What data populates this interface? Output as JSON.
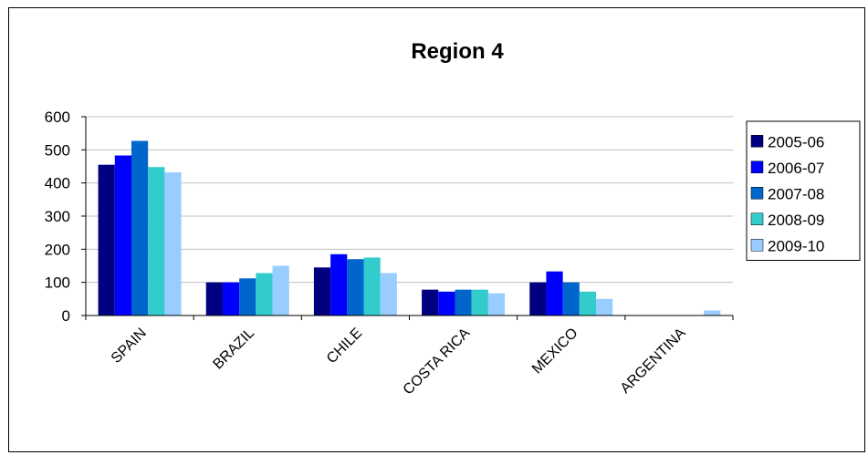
{
  "chart_data": {
    "type": "bar",
    "title": "Region 4",
    "xlabel": "",
    "ylabel": "",
    "categories": [
      "SPAIN",
      "BRAZIL",
      "CHILE",
      "COSTA RICA",
      "MEXICO",
      "ARGENTINA"
    ],
    "series": [
      {
        "name": "2005-06",
        "color": "#000080",
        "values": [
          455,
          100,
          145,
          78,
          100,
          0
        ]
      },
      {
        "name": "2006-07",
        "color": "#0000FF",
        "values": [
          483,
          100,
          185,
          72,
          133,
          0
        ]
      },
      {
        "name": "2007-08",
        "color": "#0066CC",
        "values": [
          527,
          112,
          170,
          78,
          100,
          0
        ]
      },
      {
        "name": "2008-09",
        "color": "#33CCCC",
        "values": [
          448,
          128,
          175,
          78,
          72,
          0
        ]
      },
      {
        "name": "2009-10",
        "color": "#99CCFF",
        "values": [
          432,
          150,
          128,
          67,
          50,
          15
        ]
      }
    ],
    "ylim": [
      0,
      600
    ],
    "yticks": [
      0,
      100,
      200,
      300,
      400,
      500,
      600
    ],
    "grid": true,
    "legend": "right"
  }
}
